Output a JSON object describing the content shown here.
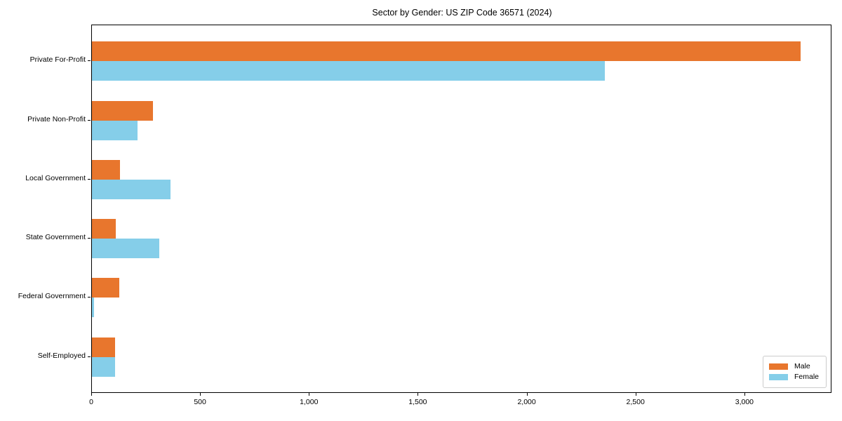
{
  "chart_data": {
    "type": "bar",
    "orientation": "horizontal",
    "title": "Sector by Gender: US ZIP Code 36571 (2024)",
    "categories": [
      "Private For-Profit",
      "Private Non-Profit",
      "Local Government",
      "State Government",
      "Federal Government",
      "Self-Employed"
    ],
    "series": [
      {
        "name": "Male",
        "color": "#e8762d",
        "values": [
          3255,
          280,
          130,
          110,
          127,
          105
        ]
      },
      {
        "name": "Female",
        "color": "#85cee9",
        "values": [
          2355,
          210,
          360,
          310,
          8,
          105
        ]
      }
    ],
    "xlabel": "",
    "ylabel": "",
    "xlim": [
      0,
      3400
    ],
    "xticks": {
      "values": [
        0,
        500,
        1000,
        1500,
        2000,
        2500,
        3000
      ],
      "labels": [
        "0",
        "500",
        "1,000",
        "1,500",
        "2,000",
        "2,500",
        "3,000"
      ]
    },
    "grid": false,
    "legend": {
      "position": "lower right",
      "entries": [
        "Male",
        "Female"
      ]
    }
  }
}
